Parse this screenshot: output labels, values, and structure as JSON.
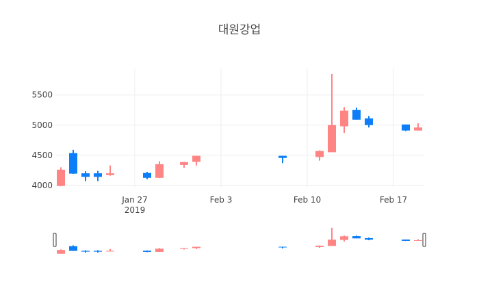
{
  "chart_data": {
    "type": "candlestick",
    "title": "대원강업",
    "x": [
      "2019-01-21",
      "2019-01-22",
      "2019-01-23",
      "2019-01-24",
      "2019-01-25",
      "2019-01-28",
      "2019-01-29",
      "2019-01-31",
      "2019-02-01",
      "2019-02-08",
      "2019-02-11",
      "2019-02-12",
      "2019-02-13",
      "2019-02-14",
      "2019-02-15",
      "2019-02-18",
      "2019-02-19"
    ],
    "open": [
      3990,
      4535,
      4200,
      4200,
      4170,
      4205,
      4125,
      4340,
      4390,
      4490,
      4470,
      4550,
      4980,
      5250,
      5110,
      5010,
      4910
    ],
    "high": [
      4300,
      4590,
      4235,
      4240,
      4330,
      4225,
      4400,
      4390,
      4490,
      4490,
      4580,
      5850,
      5300,
      5290,
      5150,
      5010,
      5030
    ],
    "low": [
      3985,
      4190,
      4070,
      4070,
      4160,
      4100,
      4120,
      4290,
      4330,
      4370,
      4410,
      4550,
      4870,
      5090,
      4960,
      4900,
      4910
    ],
    "close": [
      4260,
      4195,
      4140,
      4140,
      4200,
      4125,
      4350,
      4385,
      4490,
      4455,
      4570,
      5000,
      5240,
      5090,
      5000,
      4910,
      4960
    ],
    "increasing_color": "#ff8585",
    "decreasing_color": "#0d7ef7",
    "xlim": [
      "2019-01-20T12:00",
      "2019-02-19T12:00"
    ],
    "xticks": [
      {
        "value": "2019-01-27",
        "label": "Jan 27"
      },
      {
        "value": "2019-02-03",
        "label": "Feb 3"
      },
      {
        "value": "2019-02-10",
        "label": "Feb 10"
      },
      {
        "value": "2019-02-17",
        "label": "Feb 17"
      }
    ],
    "year": "2019",
    "ylim": [
      3975,
      5940
    ],
    "yticks": [
      4000,
      4500,
      5000,
      5500
    ],
    "grid": true,
    "rangeslider": true
  }
}
